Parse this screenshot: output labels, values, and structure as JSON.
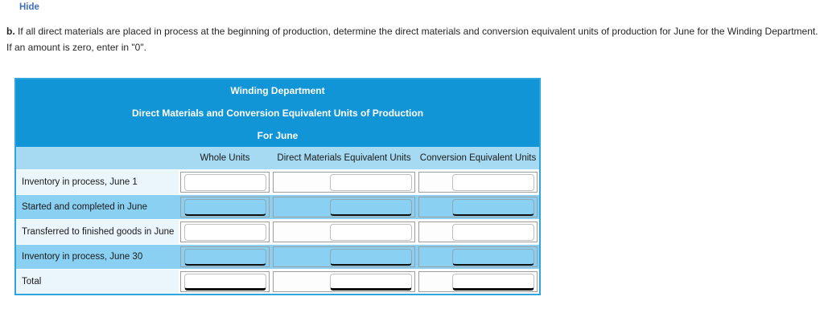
{
  "page": {
    "hide_link": "Hide",
    "question": {
      "prefix": "b.",
      "line1": "If all direct materials are placed in process at the beginning of production, determine the direct materials and conversion equivalent units of production for June for the Winding Department.",
      "line2": "If an amount is zero, enter in \"0\"."
    }
  },
  "table": {
    "title_lines": [
      "Winding Department",
      "Direct Materials and Conversion Equivalent Units of Production",
      "For June"
    ],
    "columns": [
      "Whole Units",
      "Direct Materials Equivalent Units",
      "Conversion Equivalent Units"
    ],
    "rows": [
      {
        "label": "Inventory in process, June 1",
        "shade": "light",
        "rule": "none",
        "inputs": [
          "",
          "",
          ""
        ]
      },
      {
        "label": "Started and completed in June",
        "shade": "blue",
        "rule": "single",
        "inputs": [
          "",
          "",
          ""
        ]
      },
      {
        "label": "Transferred to finished goods in June",
        "shade": "light",
        "rule": "none",
        "inputs": [
          "",
          "",
          ""
        ]
      },
      {
        "label": "Inventory in process, June 30",
        "shade": "blue",
        "rule": "single",
        "inputs": [
          "",
          "",
          ""
        ]
      },
      {
        "label": "Total",
        "shade": "light",
        "rule": "double",
        "inputs": [
          "",
          "",
          ""
        ]
      }
    ],
    "colors": {
      "header_bg": "#1295d6",
      "column_header_bg": "#a6daf2",
      "row_blue": "#8ad0f2",
      "row_light": "#eaf5fc",
      "table_border": "#2ea6dd",
      "cell_border": "#9e9e9e",
      "underline": "#101010",
      "link_blue": "#4070bf"
    }
  }
}
